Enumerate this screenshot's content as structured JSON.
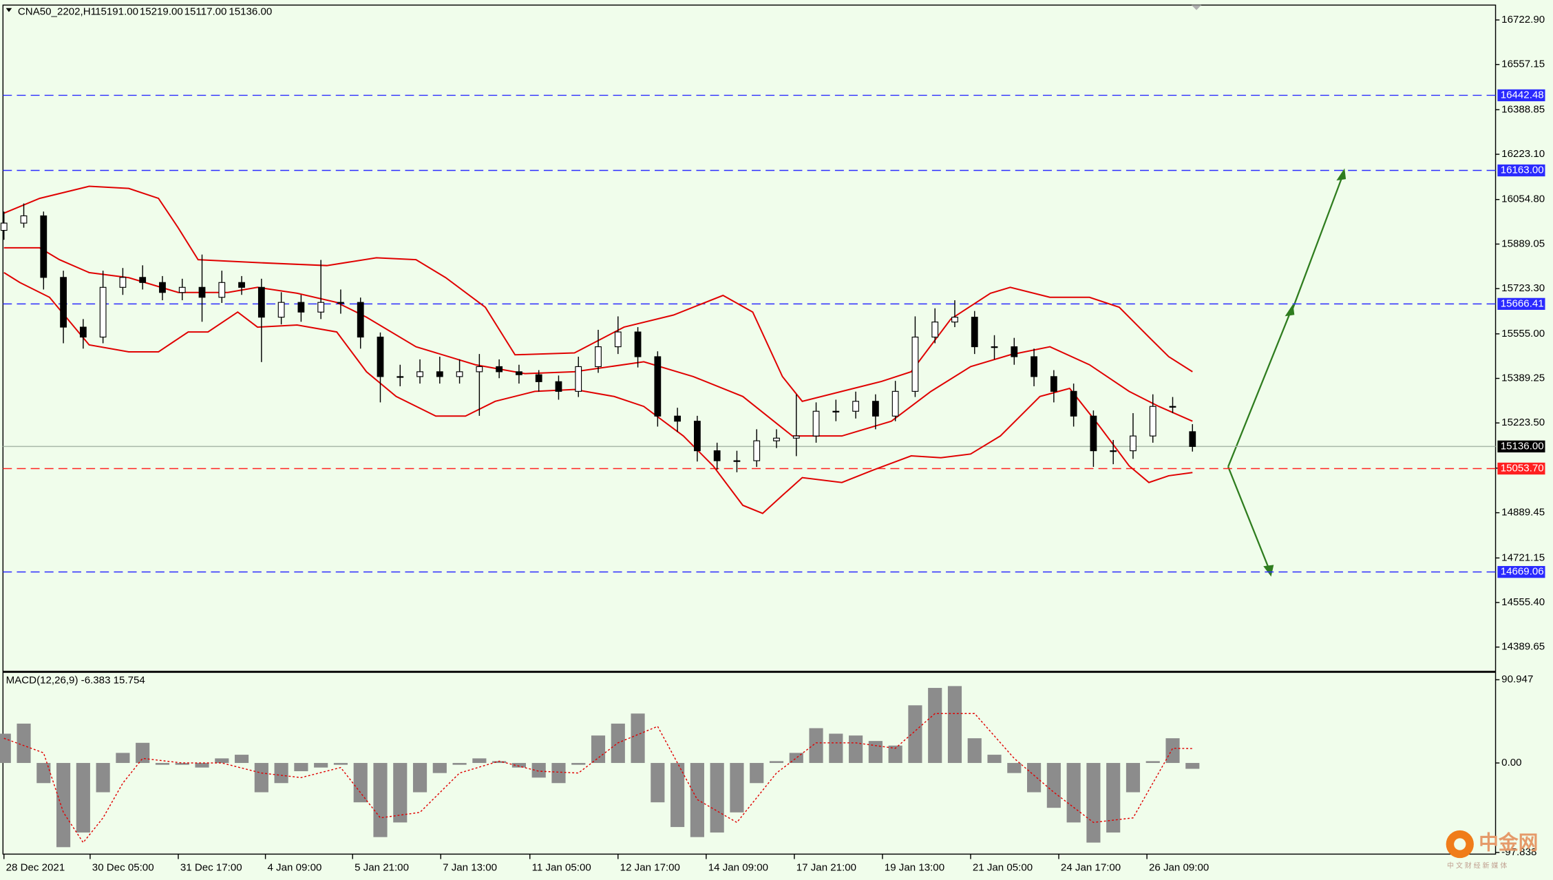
{
  "header": {
    "symbol": "CNA50_2202,H1",
    "bar_values": [
      "15191.00",
      "15219.00",
      "15117.00",
      "15136.00"
    ]
  },
  "chart_data": [
    {
      "type": "candlestick",
      "x": [
        4,
        24,
        44,
        64,
        84,
        104,
        124,
        144,
        164,
        184,
        204,
        224,
        244,
        264,
        284,
        304,
        324,
        344,
        364,
        384,
        404,
        424,
        444,
        464,
        484,
        504,
        524,
        544,
        564,
        584,
        604,
        624,
        644,
        664,
        684,
        704,
        724,
        744,
        764,
        784,
        804,
        824,
        844,
        864,
        884,
        904,
        924,
        944,
        964,
        984,
        1004,
        1024,
        1044,
        1064,
        1084,
        1104,
        1124,
        1144,
        1164,
        1184,
        1204
      ],
      "open": [
        15940,
        15967,
        15994,
        15765,
        15580,
        15543,
        15728,
        15765,
        15746,
        15709,
        15728,
        15691,
        15746,
        15728,
        15617,
        15672,
        15636,
        15672,
        15672,
        15543,
        15396,
        15396,
        15414,
        15396,
        15414,
        15433,
        15414,
        15403,
        15377,
        15341,
        15433,
        15507,
        15562,
        15470,
        15249,
        15230,
        15120,
        15083,
        15083,
        15157,
        15167,
        15175,
        15267,
        15267,
        15304,
        15249,
        15341,
        15543,
        15599,
        15617,
        15507,
        15507,
        15470,
        15396,
        15341,
        15249,
        15120,
        15120,
        15175,
        15285,
        15191
      ],
      "high": [
        16010,
        16040,
        16010,
        15790,
        15610,
        15790,
        15800,
        15810,
        15770,
        15760,
        15850,
        15790,
        15770,
        15760,
        15710,
        15700,
        15830,
        15720,
        15690,
        15560,
        15440,
        15460,
        15470,
        15460,
        15480,
        15460,
        15440,
        15420,
        15400,
        15470,
        15570,
        15620,
        15580,
        15490,
        15280,
        15250,
        15150,
        15120,
        15200,
        15200,
        15330,
        15300,
        15310,
        15340,
        15330,
        15380,
        15620,
        15650,
        15680,
        15640,
        15550,
        15540,
        15500,
        15420,
        15370,
        15270,
        15160,
        15260,
        15330,
        15320,
        15219
      ],
      "low": [
        15905,
        15950,
        15720,
        15520,
        15500,
        15520,
        15700,
        15720,
        15680,
        15680,
        15600,
        15670,
        15700,
        15450,
        15590,
        15600,
        15610,
        15630,
        15500,
        15300,
        15360,
        15370,
        15370,
        15370,
        15250,
        15390,
        15370,
        15340,
        15310,
        15320,
        15410,
        15480,
        15430,
        15210,
        15190,
        15080,
        15050,
        15040,
        15060,
        15130,
        15100,
        15150,
        15230,
        15240,
        15200,
        15230,
        15320,
        15520,
        15580,
        15480,
        15460,
        15440,
        15360,
        15300,
        15210,
        15060,
        15070,
        15090,
        15150,
        15260,
        15117
      ],
      "close": [
        15967,
        15994,
        15765,
        15580,
        15543,
        15728,
        15765,
        15746,
        15709,
        15728,
        15691,
        15746,
        15728,
        15617,
        15672,
        15636,
        15672,
        15672,
        15543,
        15396,
        15396,
        15414,
        15396,
        15414,
        15433,
        15414,
        15403,
        15377,
        15341,
        15433,
        15507,
        15562,
        15470,
        15249,
        15230,
        15120,
        15083,
        15083,
        15157,
        15167,
        15175,
        15267,
        15267,
        15304,
        15249,
        15341,
        15543,
        15599,
        15617,
        15507,
        15507,
        15470,
        15396,
        15341,
        15249,
        15120,
        15120,
        15175,
        15285,
        15285,
        15136
      ],
      "up_color": "#ffffff",
      "down_color": "#000000",
      "xlim": [
        0,
        1510
      ],
      "ylim": [
        14301.2,
        16778.2
      ],
      "yticks": [
        {
          "value": 16722.9,
          "label": "16722.90"
        },
        {
          "value": 16557.15,
          "label": "16557.15"
        },
        {
          "value": 16388.85,
          "label": "16388.85"
        },
        {
          "value": 16223.1,
          "label": "16223.10"
        },
        {
          "value": 16054.8,
          "label": "16054.80"
        },
        {
          "value": 15889.05,
          "label": "15889.05"
        },
        {
          "value": 15723.3,
          "label": "15723.30"
        },
        {
          "value": 15555,
          "label": "15555.00"
        },
        {
          "value": 15389.25,
          "label": "15389.25"
        },
        {
          "value": 15223.5,
          "label": "15223.50"
        },
        {
          "value": 15055.2,
          "label": "15055.20"
        },
        {
          "value": 14889.45,
          "label": "14889.45"
        },
        {
          "value": 14721.15,
          "label": "14721.15"
        },
        {
          "value": 14555.4,
          "label": "14555.40"
        },
        {
          "value": 14389.65,
          "label": "14389.65"
        }
      ],
      "xticks": [
        {
          "value": 4,
          "label": "28 Dec 2021"
        },
        {
          "value": 91,
          "label": "30 Dec 05:00"
        },
        {
          "value": 180,
          "label": "31 Dec 17:00"
        },
        {
          "value": 268,
          "label": "4 Jan 09:00"
        },
        {
          "value": 356,
          "label": "5 Jan 21:00"
        },
        {
          "value": 445,
          "label": "7 Jan 13:00"
        },
        {
          "value": 535,
          "label": "11 Jan 05:00"
        },
        {
          "value": 624,
          "label": "12 Jan 17:00"
        },
        {
          "value": 713,
          "label": "14 Jan 09:00"
        },
        {
          "value": 802,
          "label": "17 Jan 21:00"
        },
        {
          "value": 891,
          "label": "19 Jan 13:00"
        },
        {
          "value": 980,
          "label": "21 Jan 05:00"
        },
        {
          "value": 1069,
          "label": "24 Jan 17:00"
        },
        {
          "value": 1158,
          "label": "26 Jan 09:00"
        }
      ],
      "band_color": "#e00000",
      "bands": [
        {
          "x": [
            4,
            40,
            90,
            130,
            160,
            180,
            200,
            260,
            330,
            380,
            420,
            450,
            490,
            520,
            580,
            630,
            680,
            730,
            760,
            790,
            810,
            850,
            890,
            920,
            960,
            1000,
            1020,
            1060,
            1100,
            1130,
            1160,
            1180,
            1204
          ],
          "values": [
            16004,
            16059,
            16104,
            16096,
            16059,
            15949,
            15831,
            15820,
            15809,
            15838,
            15831,
            15764,
            15654,
            15477,
            15484,
            15580,
            15625,
            15698,
            15636,
            15396,
            15304,
            15341,
            15378,
            15414,
            15610,
            15706,
            15728,
            15691,
            15691,
            15654,
            15543,
            15470,
            15414
          ]
        },
        {
          "x": [
            4,
            40,
            60,
            90,
            130,
            180,
            230,
            260,
            300,
            340,
            370,
            420,
            480,
            530,
            580,
            650,
            700,
            750,
            800,
            850,
            900,
            940,
            980,
            1020,
            1060,
            1100,
            1140,
            1170,
            1204
          ],
          "values": [
            15875,
            15875,
            15831,
            15783,
            15764,
            15709,
            15709,
            15728,
            15706,
            15672,
            15617,
            15507,
            15440,
            15407,
            15414,
            15451,
            15396,
            15322,
            15175,
            15175,
            15230,
            15341,
            15433,
            15477,
            15507,
            15440,
            15341,
            15285,
            15230
          ]
        },
        {
          "x": [
            4,
            20,
            50,
            90,
            130,
            160,
            190,
            210,
            240,
            260,
            300,
            340,
            370,
            400,
            440,
            470,
            500,
            540,
            580,
            620,
            650,
            690,
            720,
            750,
            770,
            790,
            810,
            850,
            880,
            920,
            950,
            980,
            1010,
            1050,
            1080,
            1110,
            1140,
            1160,
            1180,
            1204
          ],
          "values": [
            15783,
            15746,
            15691,
            15514,
            15488,
            15488,
            15562,
            15562,
            15636,
            15580,
            15588,
            15562,
            15414,
            15322,
            15249,
            15249,
            15304,
            15341,
            15348,
            15322,
            15285,
            15175,
            15064,
            14917,
            14887,
            14954,
            15020,
            15002,
            15046,
            15101,
            15094,
            15108,
            15175,
            15322,
            15352,
            15212,
            15064,
            15002,
            15027,
            15039
          ]
        }
      ],
      "levels": [
        {
          "value": 16442.48,
          "label": "16442.48",
          "color": "#2a2aff"
        },
        {
          "value": 16163,
          "label": "16163.00",
          "color": "#2a2aff"
        },
        {
          "value": 15666.41,
          "label": "15666.41",
          "color": "#2a2aff"
        },
        {
          "value": 14669.06,
          "label": "14669.06",
          "color": "#2a2aff"
        },
        {
          "value": 15053.7,
          "label": "15053.70",
          "color": "#ff2020"
        }
      ],
      "current": {
        "value": 15136,
        "label": "15136.00",
        "color": "#a8b8a8"
      }
    },
    {
      "type": "macd",
      "title": "MACD(12,26,9) -6.383 15.754",
      "x": [
        4,
        24,
        44,
        64,
        84,
        104,
        124,
        144,
        164,
        184,
        204,
        224,
        244,
        264,
        284,
        304,
        324,
        344,
        364,
        384,
        404,
        424,
        444,
        464,
        484,
        504,
        524,
        544,
        564,
        584,
        604,
        624,
        644,
        664,
        684,
        704,
        724,
        744,
        764,
        784,
        804,
        824,
        844,
        864,
        884,
        904,
        924,
        944,
        964,
        984,
        1004,
        1024,
        1044,
        1064,
        1084,
        1104,
        1124,
        1144,
        1164,
        1184,
        1204
      ],
      "values": [
        32,
        43,
        -22,
        -92,
        -76,
        -32,
        11,
        22,
        -2,
        -2,
        -5,
        5,
        9,
        -32,
        -22,
        -9,
        -5,
        -2,
        -43,
        -81,
        -65,
        -32,
        -11,
        -2,
        5,
        2,
        -5,
        -16,
        -22,
        -2,
        30,
        43,
        54,
        -43,
        -70,
        -81,
        -76,
        -54,
        -22,
        2,
        11,
        38,
        32,
        30,
        24,
        19,
        63,
        82,
        84,
        27,
        9,
        -11,
        -32,
        -49,
        -65,
        -87,
        -76,
        -32,
        2,
        27,
        -6.383
      ],
      "color": "#8c8c8c",
      "signal": {
        "x": [
          4,
          44,
          64,
          84,
          104,
          124,
          144,
          184,
          224,
          264,
          304,
          344,
          384,
          424,
          464,
          504,
          544,
          584,
          624,
          664,
          704,
          744,
          784,
          824,
          864,
          904,
          944,
          984,
          1024,
          1064,
          1104,
          1144,
          1184,
          1204
        ],
        "values": [
          27,
          11,
          -54,
          -87,
          -60,
          -22,
          5,
          0,
          0,
          -11,
          -16,
          -5,
          -60,
          -54,
          -11,
          2,
          -9,
          -11,
          22,
          40,
          -40,
          -65,
          -11,
          22,
          22,
          16,
          54,
          54,
          5,
          -32,
          -65,
          -60,
          16,
          15.754
        ],
        "color": "#e00000"
      },
      "ylim": [
        -99.6,
        98.5
      ],
      "yticks": [
        90.947,
        {
          "value": 0,
          "label": "0.00"
        },
        -97.838
      ]
    }
  ],
  "watermark": {
    "name": "中金网",
    "tagline": "中 文 财 经 新 媒 体"
  }
}
